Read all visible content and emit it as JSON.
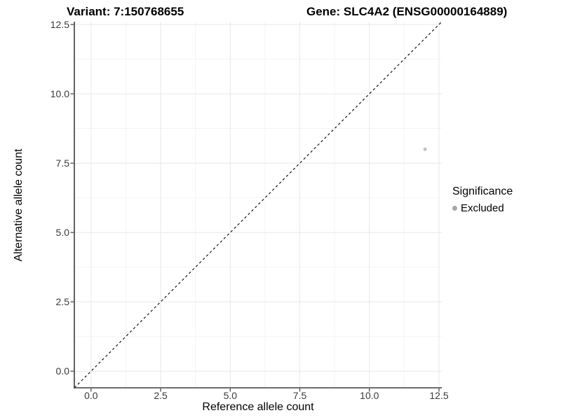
{
  "titles": {
    "variant": "Variant: 7:150768655",
    "gene": "Gene: SLC4A2 (ENSG00000164889)"
  },
  "chart_data": {
    "type": "scatter",
    "xlabel": "Reference allele count",
    "ylabel": "Alternative allele count",
    "xlim": [
      -0.6,
      12.6
    ],
    "ylim": [
      -0.6,
      12.6
    ],
    "x_ticks": [
      0,
      2.5,
      5,
      7.5,
      10,
      12.5
    ],
    "y_ticks": [
      0,
      2.5,
      5,
      7.5,
      10,
      12.5
    ],
    "x_tick_labels": [
      "0.0",
      "2.5",
      "5.0",
      "7.5",
      "10.0",
      "12.5"
    ],
    "y_tick_labels": [
      "0.0",
      "2.5",
      "5.0",
      "7.5",
      "10.0",
      "12.5"
    ],
    "minor_ticks": [
      1.25,
      3.75,
      6.25,
      8.75,
      11.25
    ],
    "grid": true,
    "series": [
      {
        "name": "Excluded",
        "color": "#c2c2c2",
        "marker": "circle",
        "points": [
          {
            "x": 12,
            "y": 8
          }
        ]
      }
    ],
    "reference_line": {
      "type": "identity",
      "style": "dashed",
      "color": "#000000"
    },
    "legend": {
      "title": "Significance",
      "position": "right",
      "items": [
        {
          "label": "Excluded",
          "color": "#a6a6a6",
          "marker": "circle"
        }
      ]
    }
  },
  "colors": {
    "background": "#ffffff",
    "grid_major": "#e8e8e8",
    "grid_minor": "#f4f4f4",
    "axis_line": "#3c3c3c",
    "tick_mark": "#3c3c3c",
    "tick_label": "#3a3a3a",
    "point": "#c2c2c2",
    "legend_marker": "#a6a6a6",
    "reference_line": "#000000"
  }
}
